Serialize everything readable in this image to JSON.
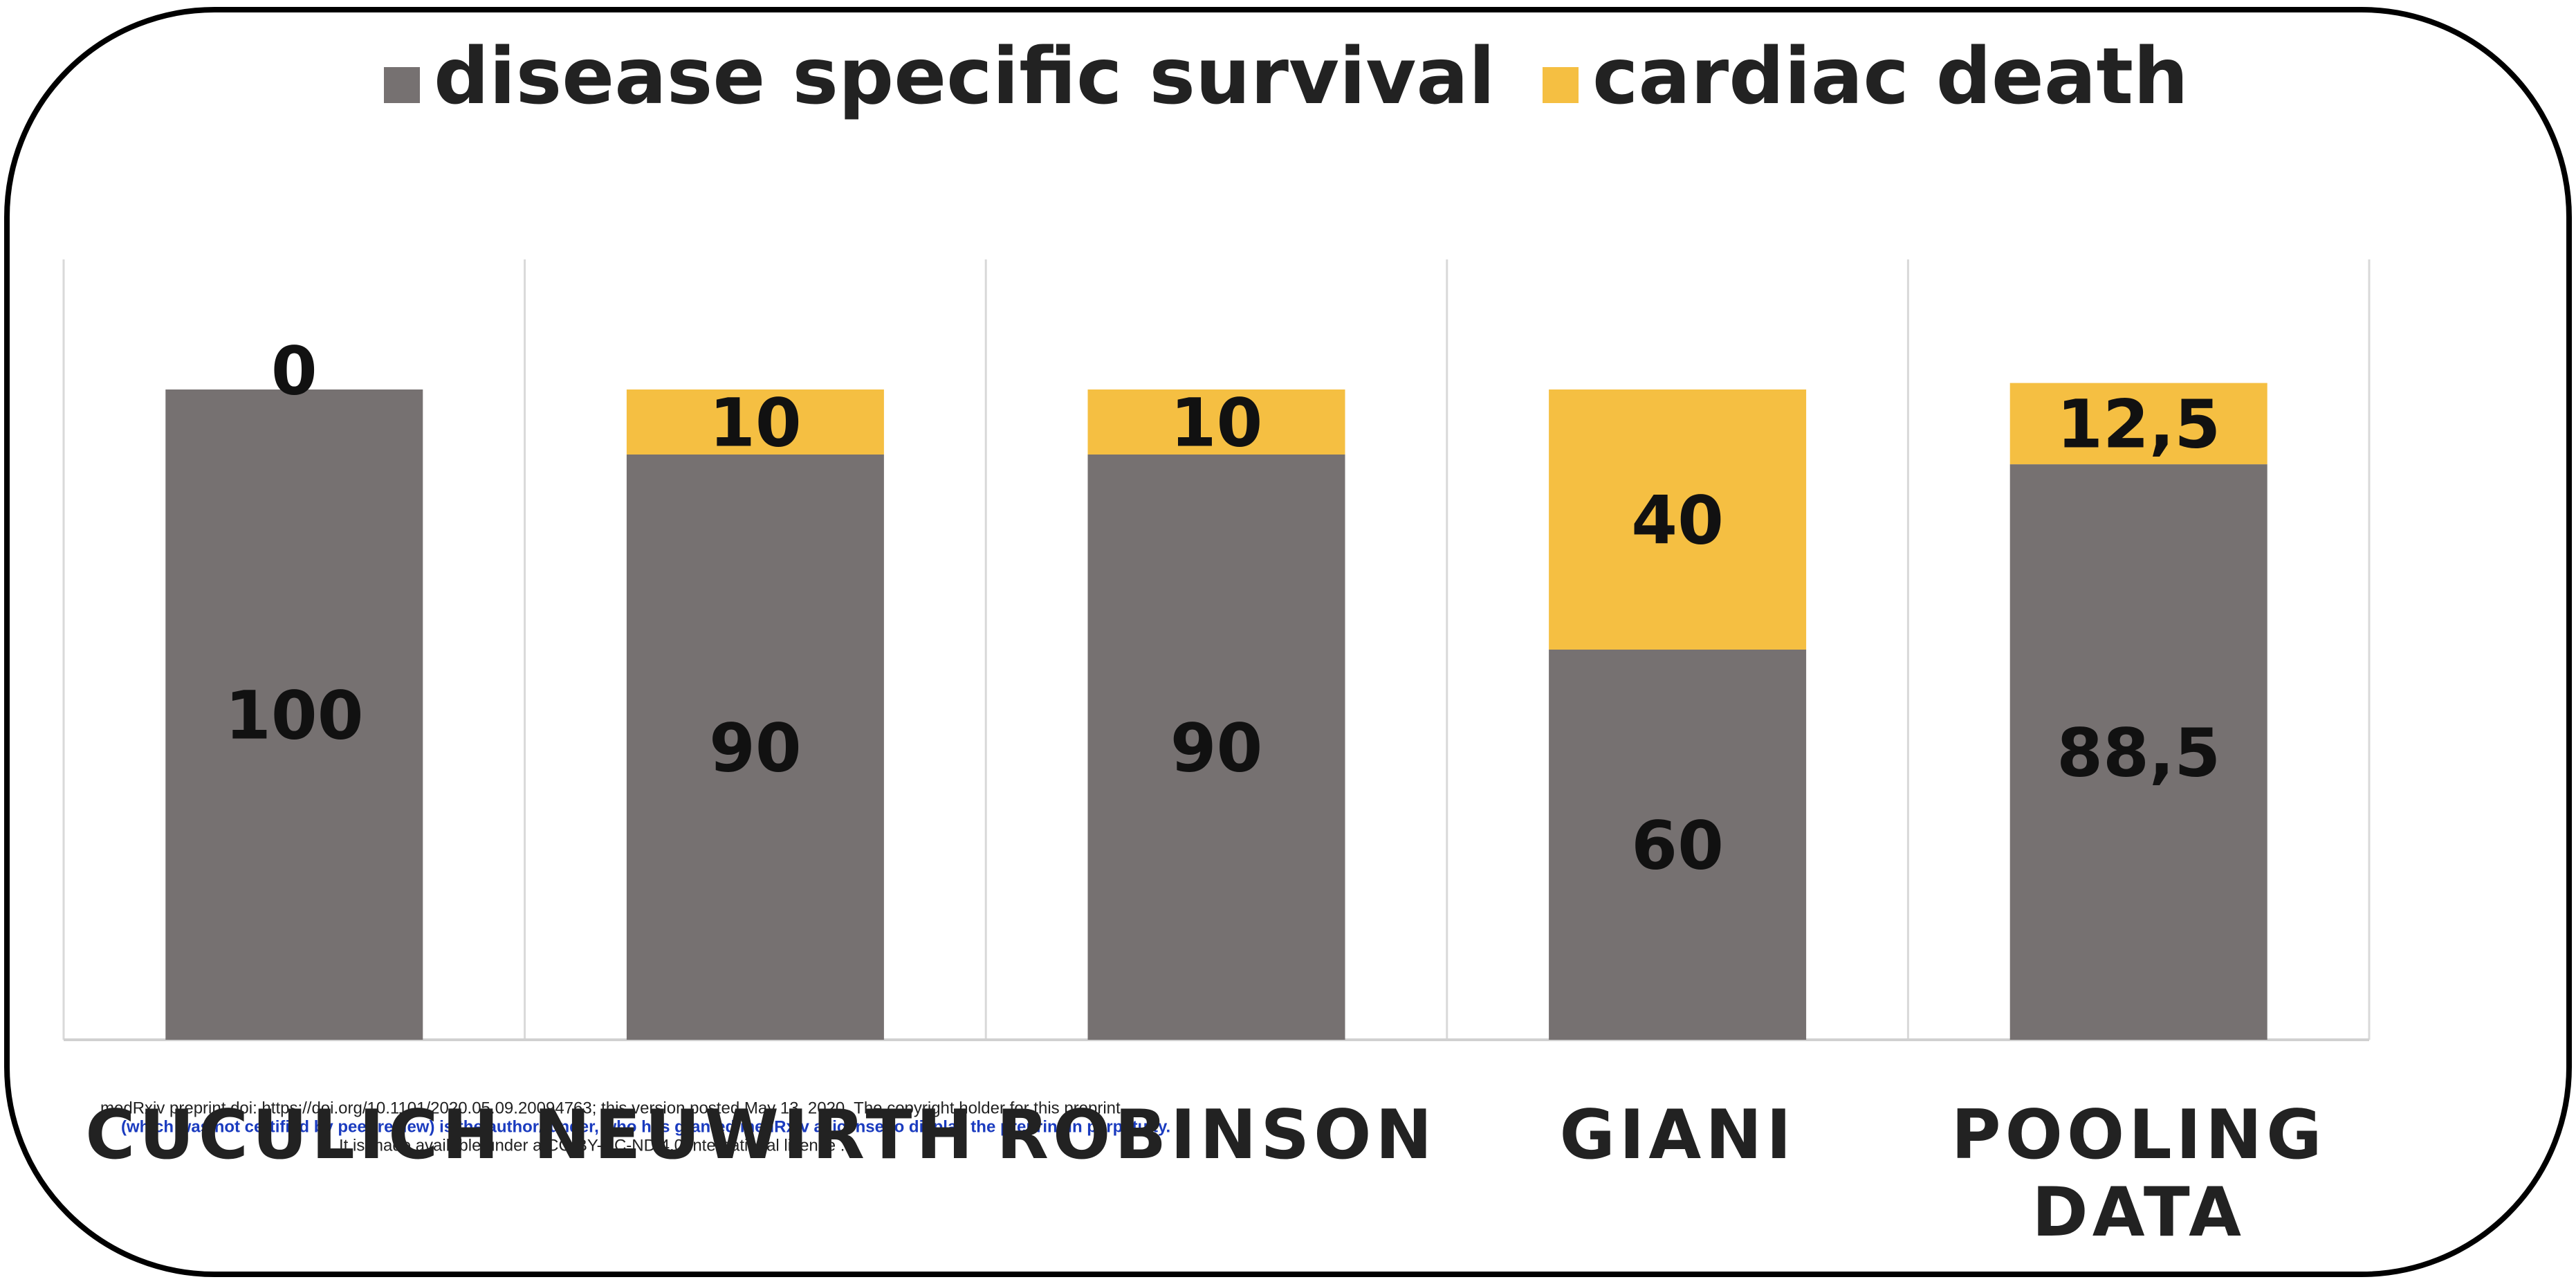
{
  "chart_data": {
    "type": "stacked_bar",
    "categories": [
      "CUCULICH",
      "NEUWIRTH",
      "ROBINSON",
      "GIANI",
      "POOLING DATA"
    ],
    "series": [
      {
        "name": "disease specific survival",
        "color": "#767171",
        "values": [
          100,
          90,
          90,
          60,
          88.5
        ],
        "value_labels": [
          "100",
          "90",
          "90",
          "60",
          "88,5"
        ]
      },
      {
        "name": "cardiac death",
        "color": "#f5bf42",
        "values": [
          0,
          10,
          10,
          40,
          12.5
        ],
        "value_labels": [
          "0",
          "10",
          "10",
          "40",
          "12,5"
        ]
      }
    ],
    "ylim": [
      0,
      120
    ],
    "annotations": [
      "medRxiv preprint doi: https://doi.org/10.1101/2020.05.09.20094763; this version posted May 13, 2020. The copyright holder for this preprint",
      "(which was not certified by peer review) is the author/funder, who has granted medRxiv a license to display the preprint in perpetuity.",
      "It is made available under a CC-BY-NC-ND 4.0 International license ."
    ]
  }
}
